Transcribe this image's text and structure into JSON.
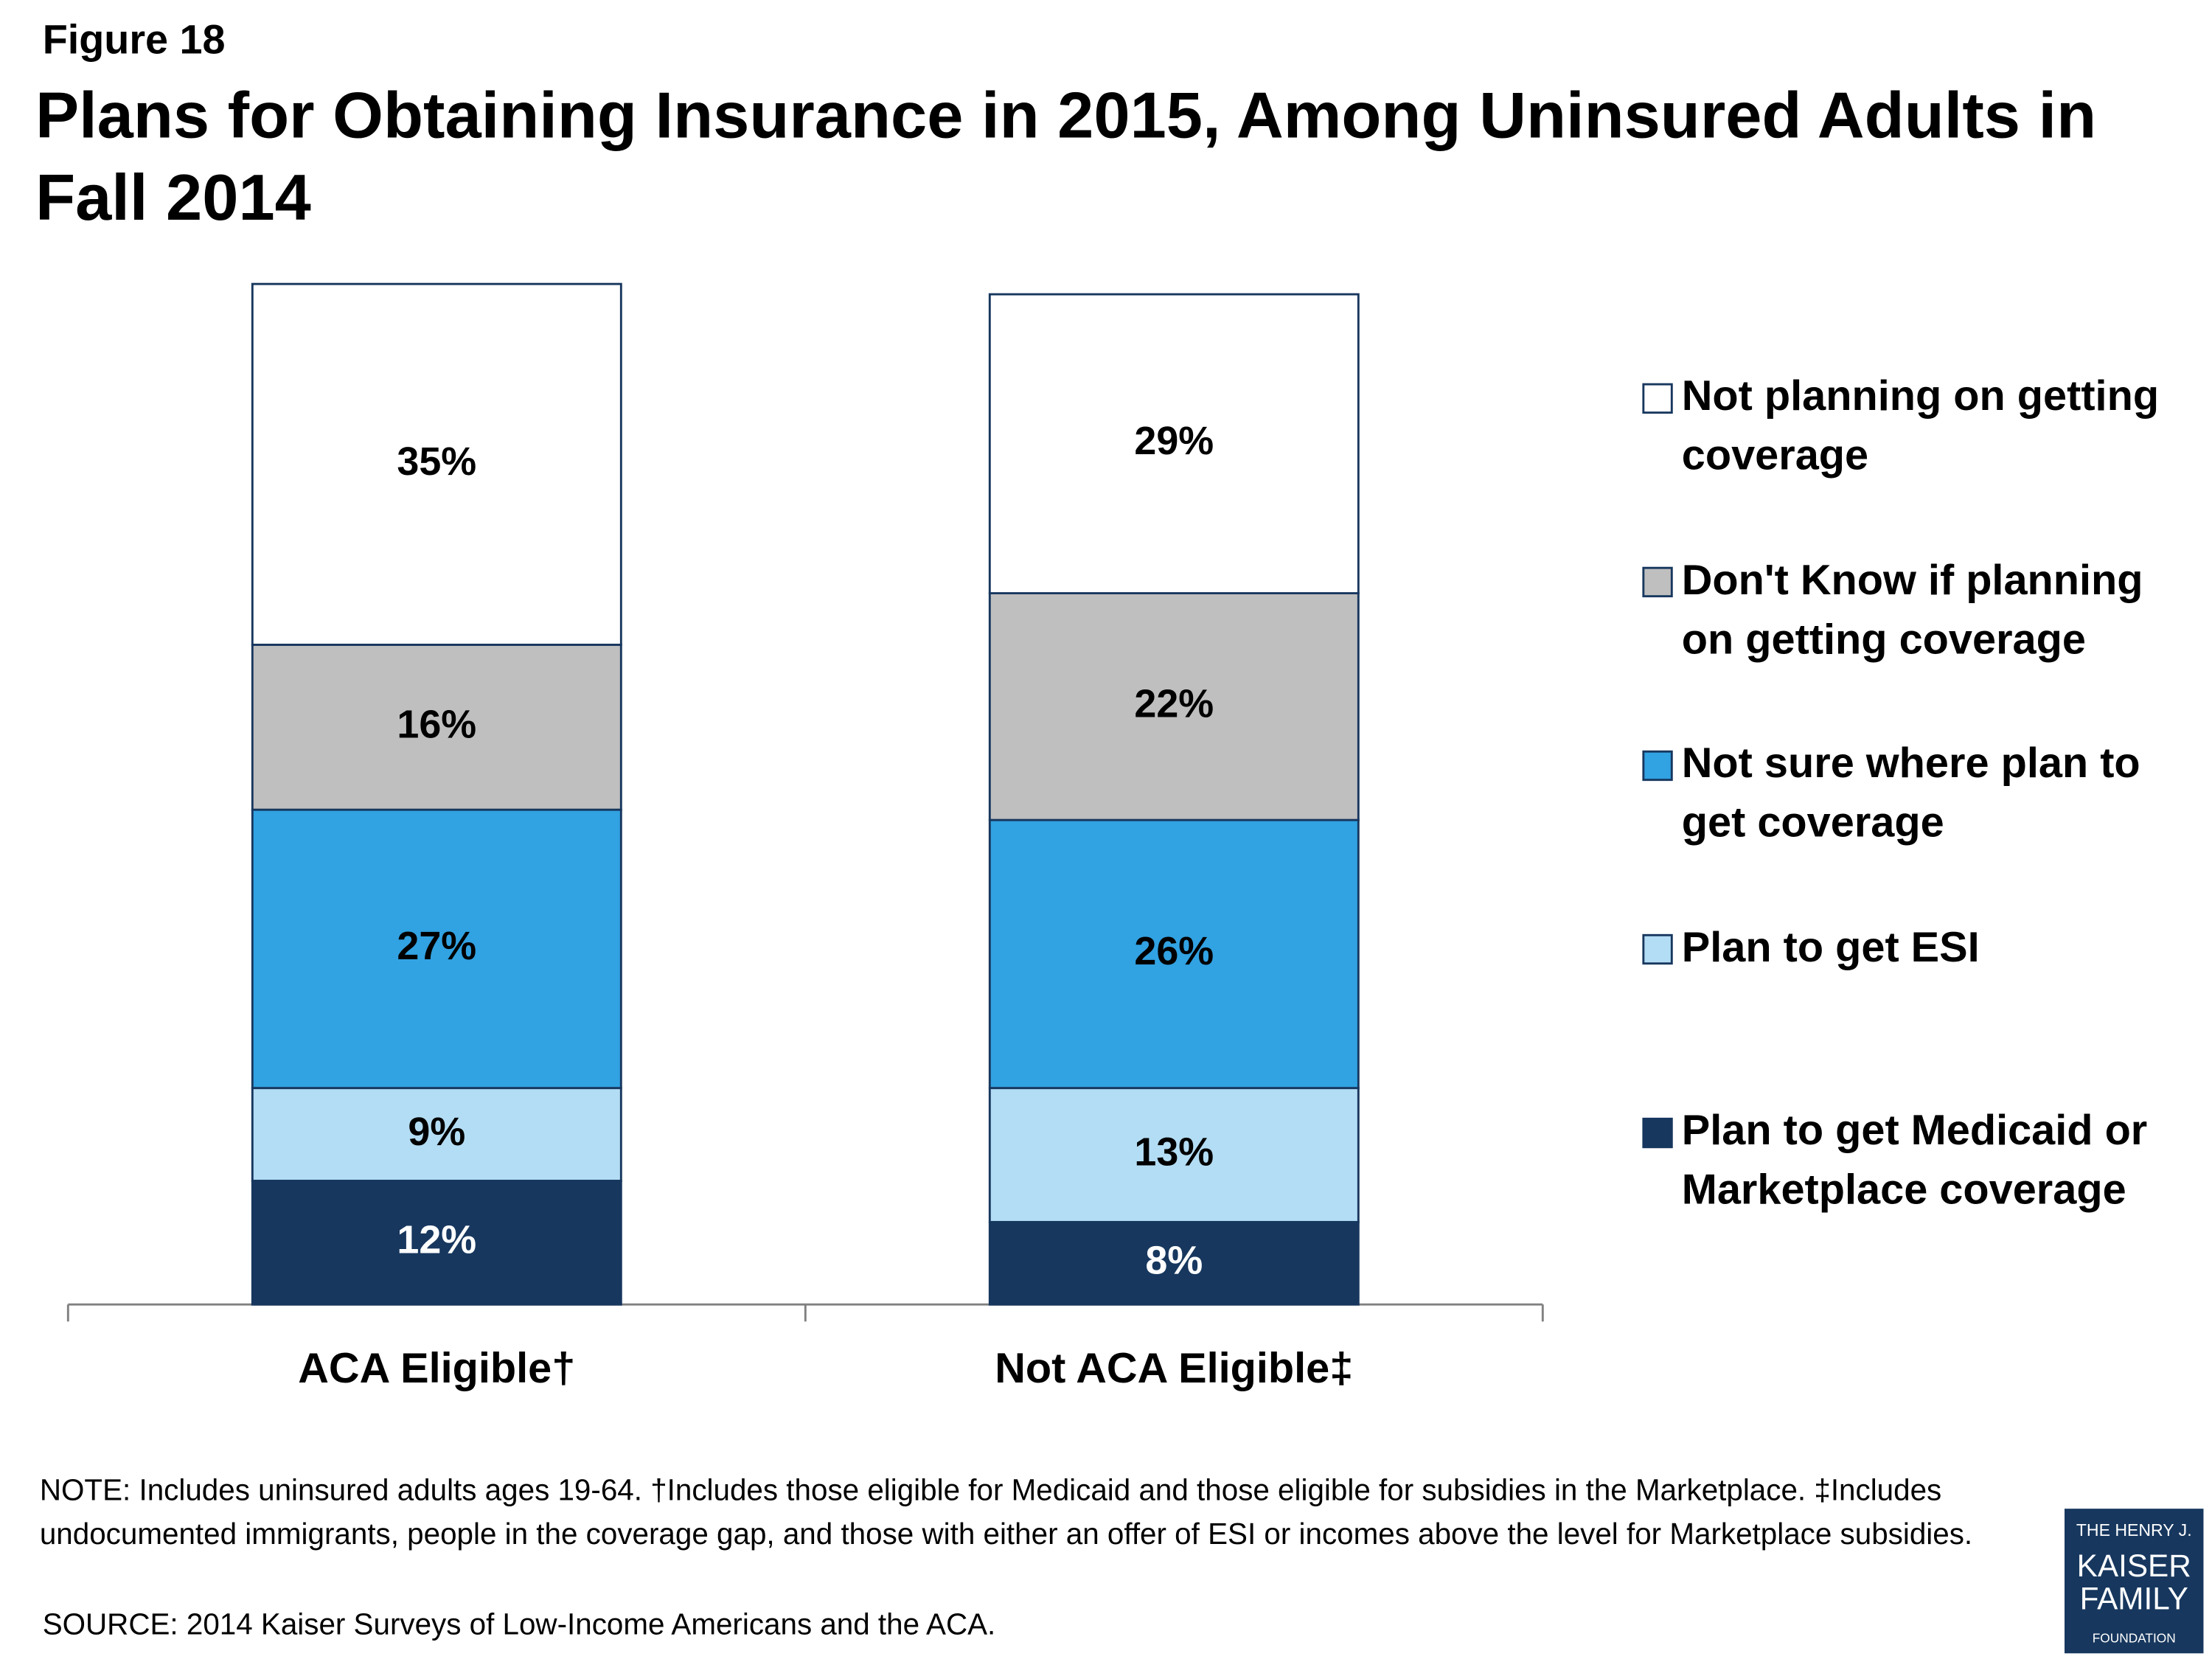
{
  "chart_data": {
    "type": "stacked-bar",
    "figure_label": "Figure 18",
    "title": "Plans for Obtaining Insurance in 2015, Among Uninsured Adults in Fall 2014",
    "categories": [
      "ACA Eligible†",
      "Not ACA Eligible‡"
    ],
    "series": [
      {
        "name": "Plan to get Medicaid or Marketplace coverage",
        "color": "#17375e",
        "values": [
          12,
          8
        ],
        "value_labels": [
          "12%",
          "8%"
        ]
      },
      {
        "name": "Plan to get ESI",
        "color": "#b3ddf4",
        "values": [
          9,
          13
        ],
        "value_labels": [
          "9%",
          "13%"
        ]
      },
      {
        "name": "Not sure where plan to get coverage",
        "color": "#31a2e2",
        "values": [
          27,
          26
        ],
        "value_labels": [
          "27%",
          "26%"
        ]
      },
      {
        "name": "Don't Know if planning on getting coverage",
        "color": "#bfbfbf",
        "values": [
          16,
          22
        ],
        "value_labels": [
          "16%",
          "22%"
        ]
      },
      {
        "name": "Not planning on getting coverage",
        "color": "#ffffff",
        "values": [
          35,
          29
        ],
        "value_labels": [
          "35%",
          "29%"
        ]
      }
    ],
    "note": "NOTE: Includes uninsured adults ages 19-64. †Includes those eligible for Medicaid and those eligible for subsidies in the Marketplace. ‡Includes undocumented immigrants, people in the coverage gap, and those with either an offer of ESI or incomes above the level for Marketplace subsidies.",
    "source": "SOURCE: 2014 Kaiser Surveys of Low-Income Americans and the ACA.",
    "logo": [
      "THE HENRY J.",
      "KAISER",
      "FAMILY",
      "FOUNDATION"
    ]
  }
}
